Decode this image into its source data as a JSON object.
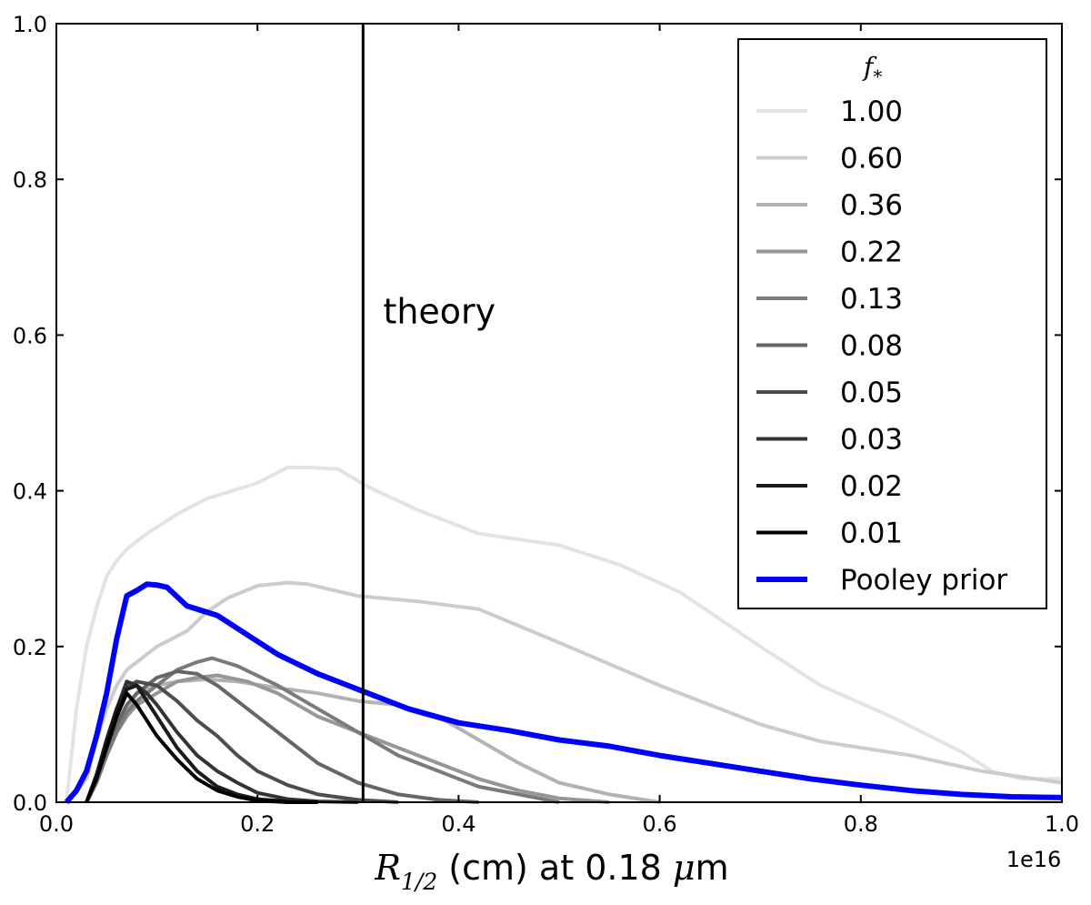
{
  "chart_data": {
    "type": "line",
    "xlim": [
      0.0,
      1.0
    ],
    "ylim": [
      0.0,
      1.0
    ],
    "x_ticks": [
      "0.0",
      "0.2",
      "0.4",
      "0.6",
      "0.8",
      "1.0"
    ],
    "y_ticks": [
      "0.0",
      "0.2",
      "0.4",
      "0.6",
      "0.8",
      "1.0"
    ],
    "x_offset_label": "1e16",
    "xlabel": {
      "var": "R",
      "sub": "1/2",
      "text": " (cm) at 0.18 ",
      "unit_var": "μ",
      "unit": "m"
    },
    "annotation": {
      "text": "theory",
      "x": 0.325,
      "y": 0.615
    },
    "vline_x": 0.305,
    "legend": {
      "title": "f",
      "title_sub": "*",
      "placement": "top-right"
    },
    "series": [
      {
        "name": "1.00",
        "color": "#e3e3e3",
        "width": 4,
        "x": [
          0.01,
          0.02,
          0.03,
          0.04,
          0.05,
          0.06,
          0.07,
          0.09,
          0.12,
          0.15,
          0.2,
          0.23,
          0.25,
          0.28,
          0.31,
          0.36,
          0.42,
          0.5,
          0.56,
          0.62,
          0.7,
          0.76,
          0.83,
          0.9,
          0.93,
          0.96,
          1.0
        ],
        "y": [
          0.0,
          0.12,
          0.2,
          0.25,
          0.29,
          0.31,
          0.325,
          0.345,
          0.37,
          0.39,
          0.41,
          0.43,
          0.43,
          0.428,
          0.405,
          0.375,
          0.345,
          0.33,
          0.305,
          0.27,
          0.2,
          0.15,
          0.11,
          0.065,
          0.04,
          0.03,
          0.03
        ]
      },
      {
        "name": "0.60",
        "color": "#cccccc",
        "width": 4,
        "x": [
          0.01,
          0.03,
          0.04,
          0.05,
          0.06,
          0.07,
          0.08,
          0.1,
          0.13,
          0.15,
          0.17,
          0.2,
          0.23,
          0.25,
          0.3,
          0.36,
          0.42,
          0.5,
          0.6,
          0.7,
          0.76,
          0.85,
          0.92,
          1.0
        ],
        "y": [
          0.0,
          0.03,
          0.08,
          0.12,
          0.15,
          0.17,
          0.18,
          0.2,
          0.22,
          0.245,
          0.262,
          0.278,
          0.282,
          0.28,
          0.265,
          0.258,
          0.248,
          0.205,
          0.15,
          0.1,
          0.078,
          0.06,
          0.04,
          0.025
        ]
      },
      {
        "name": "0.36",
        "color": "#b2b2b2",
        "width": 4,
        "x": [
          0.03,
          0.04,
          0.05,
          0.06,
          0.07,
          0.08,
          0.1,
          0.12,
          0.15,
          0.18,
          0.22,
          0.26,
          0.3,
          0.34,
          0.38,
          0.42,
          0.46,
          0.5,
          0.55,
          0.6
        ],
        "y": [
          0.0,
          0.03,
          0.07,
          0.1,
          0.12,
          0.14,
          0.15,
          0.155,
          0.158,
          0.155,
          0.147,
          0.14,
          0.13,
          0.125,
          0.11,
          0.08,
          0.05,
          0.025,
          0.01,
          0.0
        ]
      },
      {
        "name": "0.22",
        "color": "#969696",
        "width": 4,
        "x": [
          0.03,
          0.04,
          0.05,
          0.06,
          0.07,
          0.08,
          0.1,
          0.12,
          0.14,
          0.16,
          0.19,
          0.22,
          0.26,
          0.3,
          0.34,
          0.38,
          0.42,
          0.46,
          0.5,
          0.55
        ],
        "y": [
          0.0,
          0.025,
          0.06,
          0.09,
          0.11,
          0.125,
          0.14,
          0.155,
          0.16,
          0.163,
          0.155,
          0.14,
          0.11,
          0.09,
          0.07,
          0.05,
          0.03,
          0.015,
          0.005,
          0.0
        ]
      },
      {
        "name": "0.13",
        "color": "#7a7a7a",
        "width": 4,
        "x": [
          0.03,
          0.04,
          0.05,
          0.06,
          0.07,
          0.08,
          0.1,
          0.12,
          0.14,
          0.155,
          0.18,
          0.22,
          0.26,
          0.3,
          0.34,
          0.38,
          0.42,
          0.46,
          0.5
        ],
        "y": [
          0.0,
          0.025,
          0.06,
          0.09,
          0.115,
          0.13,
          0.15,
          0.17,
          0.18,
          0.185,
          0.175,
          0.15,
          0.12,
          0.09,
          0.06,
          0.04,
          0.02,
          0.01,
          0.0
        ]
      },
      {
        "name": "0.08",
        "color": "#666666",
        "width": 4,
        "x": [
          0.03,
          0.04,
          0.05,
          0.06,
          0.07,
          0.08,
          0.1,
          0.12,
          0.14,
          0.16,
          0.18,
          0.2,
          0.23,
          0.26,
          0.3,
          0.34,
          0.38,
          0.42
        ],
        "y": [
          0.0,
          0.03,
          0.07,
          0.1,
          0.125,
          0.14,
          0.16,
          0.168,
          0.165,
          0.15,
          0.13,
          0.11,
          0.08,
          0.05,
          0.025,
          0.01,
          0.003,
          0.0
        ]
      },
      {
        "name": "0.05",
        "color": "#4d4d4d",
        "width": 4,
        "x": [
          0.03,
          0.04,
          0.05,
          0.06,
          0.07,
          0.08,
          0.1,
          0.12,
          0.14,
          0.16,
          0.18,
          0.2,
          0.23,
          0.26,
          0.3,
          0.34
        ],
        "y": [
          0.0,
          0.035,
          0.08,
          0.12,
          0.148,
          0.155,
          0.15,
          0.13,
          0.105,
          0.085,
          0.06,
          0.04,
          0.022,
          0.01,
          0.003,
          0.0
        ]
      },
      {
        "name": "0.03",
        "color": "#333333",
        "width": 4,
        "x": [
          0.03,
          0.04,
          0.05,
          0.06,
          0.07,
          0.08,
          0.09,
          0.1,
          0.12,
          0.14,
          0.16,
          0.18,
          0.2,
          0.23,
          0.26,
          0.3
        ],
        "y": [
          0.0,
          0.035,
          0.08,
          0.12,
          0.155,
          0.15,
          0.14,
          0.125,
          0.09,
          0.06,
          0.04,
          0.025,
          0.012,
          0.004,
          0.001,
          0.0
        ]
      },
      {
        "name": "0.02",
        "color": "#1a1a1a",
        "width": 4,
        "x": [
          0.03,
          0.04,
          0.05,
          0.06,
          0.07,
          0.08,
          0.09,
          0.1,
          0.12,
          0.14,
          0.16,
          0.18,
          0.2,
          0.23,
          0.26
        ],
        "y": [
          0.0,
          0.035,
          0.08,
          0.12,
          0.145,
          0.15,
          0.13,
          0.11,
          0.07,
          0.04,
          0.02,
          0.01,
          0.004,
          0.001,
          0.0
        ]
      },
      {
        "name": "0.01",
        "color": "#000000",
        "width": 4,
        "x": [
          0.03,
          0.04,
          0.05,
          0.06,
          0.07,
          0.08,
          0.09,
          0.1,
          0.12,
          0.14,
          0.16,
          0.18,
          0.2,
          0.23,
          0.26
        ],
        "y": [
          0.0,
          0.03,
          0.07,
          0.11,
          0.14,
          0.125,
          0.105,
          0.085,
          0.055,
          0.03,
          0.015,
          0.007,
          0.002,
          0.0,
          0.0
        ]
      },
      {
        "name": "Pooley prior",
        "color": "#0000ff",
        "width": 6,
        "x": [
          0.01,
          0.02,
          0.03,
          0.04,
          0.05,
          0.06,
          0.07,
          0.08,
          0.09,
          0.1,
          0.11,
          0.13,
          0.16,
          0.19,
          0.22,
          0.26,
          0.3,
          0.35,
          0.4,
          0.45,
          0.5,
          0.55,
          0.6,
          0.65,
          0.7,
          0.75,
          0.8,
          0.85,
          0.9,
          0.95,
          1.0
        ],
        "y": [
          0.0,
          0.015,
          0.04,
          0.085,
          0.14,
          0.21,
          0.265,
          0.272,
          0.28,
          0.279,
          0.276,
          0.252,
          0.24,
          0.215,
          0.19,
          0.165,
          0.145,
          0.12,
          0.102,
          0.092,
          0.08,
          0.072,
          0.06,
          0.05,
          0.04,
          0.03,
          0.022,
          0.015,
          0.01,
          0.007,
          0.006
        ]
      }
    ]
  }
}
